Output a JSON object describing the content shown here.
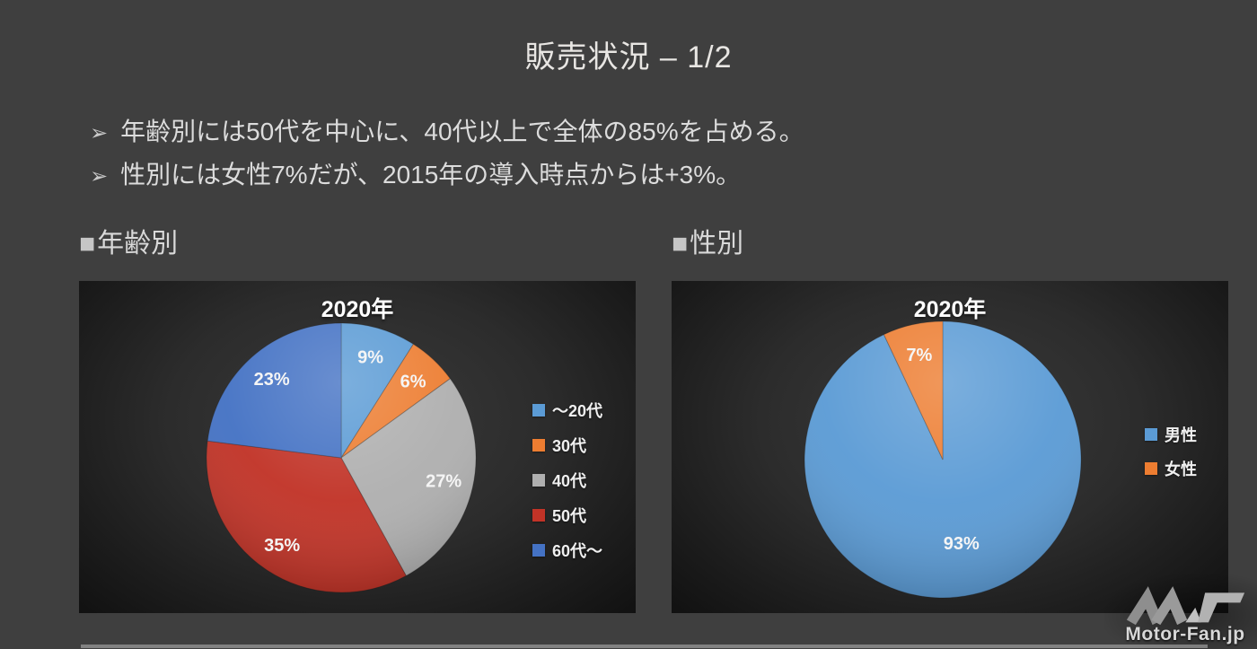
{
  "slide": {
    "title": "販売状況 – 1/2",
    "bullets": [
      {
        "marker": "➢",
        "text": "年齢別には50代を中心に、40代以上で全体の85%を占める。"
      },
      {
        "marker": "➢",
        "text": "性別には女性7%だが、2015年の導入時点からは+3%。"
      }
    ],
    "sections": [
      {
        "marker": "■",
        "label": "年齢別"
      },
      {
        "marker": "■",
        "label": "性別"
      }
    ],
    "watermark": {
      "text": "Motor-Fan.jp"
    }
  },
  "chart_data": [
    {
      "type": "pie",
      "name": "age-distribution",
      "title": "2020年",
      "categories": [
        "～20代",
        "30代",
        "40代",
        "50代",
        "60代～"
      ],
      "values": [
        9,
        6,
        27,
        35,
        23
      ],
      "labels": [
        "9%",
        "6%",
        "27%",
        "35%",
        "23%"
      ],
      "colors": [
        "#5B9BD5",
        "#ED7D31",
        "#AFAFAF",
        "#C13327",
        "#4472C4"
      ],
      "unit": "percent",
      "start_angle": "top",
      "direction": "clockwise",
      "legend_position": "right",
      "data_label_color": "#FFFFFF"
    },
    {
      "type": "pie",
      "name": "gender-distribution",
      "title": "2020年",
      "categories": [
        "男性",
        "女性"
      ],
      "values": [
        93,
        7
      ],
      "labels": [
        "93%",
        "7%"
      ],
      "colors": [
        "#5B9BD5",
        "#ED7D31"
      ],
      "unit": "percent",
      "start_angle": "top",
      "direction": "clockwise",
      "legend_position": "right",
      "data_label_color": "#FFFFFF"
    }
  ]
}
